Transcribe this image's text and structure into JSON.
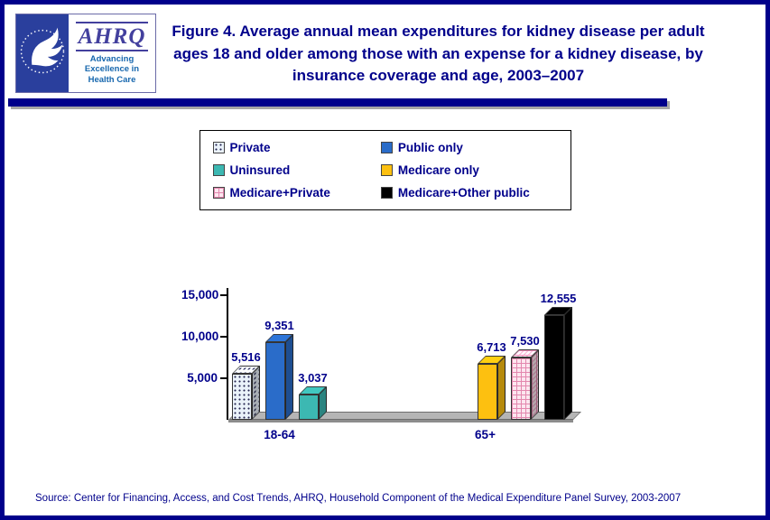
{
  "colors": {
    "navy": "#00008b",
    "hhs_blue": "#2a3f9d",
    "ahrq_purple": "#43409e",
    "ahrq_blue": "#1767ae",
    "floor_gray": "#b5b5b5"
  },
  "header": {
    "logo": {
      "acronym": "AHRQ",
      "tagline": [
        "Advancing",
        "Excellence in",
        "Health Care"
      ]
    }
  },
  "legend": {
    "items": [
      {
        "label": "Private",
        "pattern": "dots",
        "color": "#eaf2fa"
      },
      {
        "label": "Public only",
        "pattern": "solid",
        "color": "#2a6cc9"
      },
      {
        "label": "Uninsured",
        "pattern": "solid",
        "color": "#3cb8b2"
      },
      {
        "label": "Medicare only",
        "pattern": "solid",
        "color": "#fdc010"
      },
      {
        "label": "Medicare+Private",
        "pattern": "checker",
        "color": "#fce6ef"
      },
      {
        "label": "Medicare+Other public",
        "pattern": "solid",
        "color": "#000000"
      }
    ]
  },
  "chart_data": {
    "type": "bar",
    "title": "Figure 4. Average annual mean expenditures for kidney disease per adult ages 18 and older among those with an expense for a kidney disease, by insurance coverage and age, 2003–2007",
    "xlabel": "",
    "ylabel": "",
    "ylim": [
      0,
      15000
    ],
    "yticks": [
      5000,
      10000,
      15000
    ],
    "ytick_labels": [
      "5,000",
      "10,000",
      "15,000"
    ],
    "grid": false,
    "legend_position": "top",
    "categories": [
      "18-64",
      "65+"
    ],
    "groups": [
      {
        "category": "18-64",
        "bars": [
          {
            "series": "Private",
            "value": 5516,
            "label": "5,516"
          },
          {
            "series": "Public only",
            "value": 9351,
            "label": "9,351"
          },
          {
            "series": "Uninsured",
            "value": 3037,
            "label": "3,037"
          }
        ]
      },
      {
        "category": "65+",
        "bars": [
          {
            "series": "Medicare only",
            "value": 6713,
            "label": "6,713"
          },
          {
            "series": "Medicare+Private",
            "value": 7530,
            "label": "7,530"
          },
          {
            "series": "Medicare+Other public",
            "value": 12555,
            "label": "12,555"
          }
        ]
      }
    ]
  },
  "footer": {
    "source": "Source: Center for Financing, Access, and Cost Trends, AHRQ, Household Component of the Medical Expenditure Panel Survey, 2003-2007"
  }
}
